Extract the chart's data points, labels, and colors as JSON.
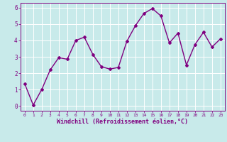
{
  "x": [
    0,
    1,
    2,
    3,
    4,
    5,
    6,
    7,
    8,
    9,
    10,
    11,
    12,
    13,
    14,
    15,
    16,
    17,
    18,
    19,
    20,
    21,
    22,
    23
  ],
  "y": [
    1.35,
    0.05,
    1.0,
    2.2,
    2.95,
    2.85,
    4.0,
    4.2,
    3.15,
    2.4,
    2.25,
    2.35,
    3.95,
    4.9,
    5.65,
    5.95,
    5.5,
    3.85,
    4.45,
    2.5,
    3.75,
    4.5,
    3.6,
    4.1
  ],
  "line_color": "#800080",
  "marker": "D",
  "marker_size": 2.0,
  "bg_color": "#c8eaea",
  "grid_color": "#ffffff",
  "xlabel": "Windchill (Refroidissement éolien,°C)",
  "xlim": [
    -0.5,
    23.5
  ],
  "ylim": [
    -0.3,
    6.3
  ],
  "yticks": [
    0,
    1,
    2,
    3,
    4,
    5,
    6
  ],
  "xticks": [
    0,
    1,
    2,
    3,
    4,
    5,
    6,
    7,
    8,
    9,
    10,
    11,
    12,
    13,
    14,
    15,
    16,
    17,
    18,
    19,
    20,
    21,
    22,
    23
  ],
  "tick_color": "#800080",
  "label_color": "#800080",
  "line_width": 1.0,
  "xlabel_fontsize": 6.0,
  "xtick_fontsize": 4.5,
  "ytick_fontsize": 5.5
}
